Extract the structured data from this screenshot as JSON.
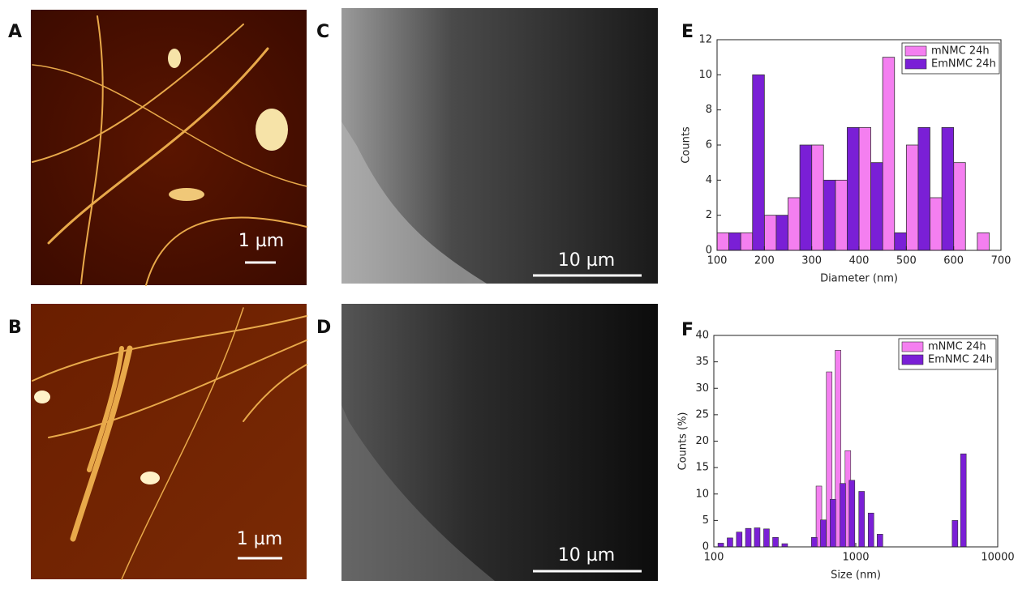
{
  "panels": [
    {
      "label": "A",
      "scale_bar": "1 µm"
    },
    {
      "label": "B",
      "scale_bar": "1 µm"
    },
    {
      "label": "C",
      "scale_bar": "10 µm"
    },
    {
      "label": "D",
      "scale_bar": "10 µm"
    }
  ],
  "chart_data": [
    {
      "type": "histogram",
      "label": "E",
      "x_label": "Diameter (nm)",
      "y_label": "Counts",
      "bins": [
        100,
        150,
        200,
        250,
        300,
        350,
        400,
        450,
        500,
        550,
        600,
        650,
        700
      ],
      "series": [
        {
          "name": "mNMC 24h",
          "color": "#f47ff0",
          "values": [
            1,
            1,
            2,
            3,
            6,
            4,
            7,
            11,
            6,
            3,
            5,
            1
          ]
        },
        {
          "name": "EmNMC 24h",
          "color": "#7a1fd6",
          "values": [
            1,
            10,
            2,
            6,
            4,
            7,
            5,
            1,
            7,
            7,
            0,
            0
          ]
        }
      ],
      "xlim": [
        100,
        700
      ],
      "xticks": [
        100,
        200,
        300,
        400,
        500,
        600,
        700
      ],
      "ylim": [
        0,
        12
      ],
      "yticks": [
        0,
        2,
        4,
        6,
        8,
        10,
        12
      ],
      "legend": "upper right"
    },
    {
      "type": "bar",
      "label": "F",
      "x_label": "Size (nm)",
      "y_label": "Counts (%)",
      "xscale": "log",
      "series": [
        {
          "name": "mNMC 24h",
          "color": "#f47ff0",
          "x": [
            550,
            650,
            750,
            880
          ],
          "values": [
            11.5,
            33.1,
            37.2,
            18.2
          ]
        },
        {
          "name": "EmNMC 24h",
          "color": "#7a1fd6",
          "x": [
            112,
            130,
            151,
            175,
            202,
            235,
            272,
            316,
            510,
            590,
            690,
            810,
            940,
            1100,
            1280,
            1480,
            5000,
            5730
          ],
          "values": [
            0.7,
            1.7,
            2.8,
            3.5,
            3.6,
            3.4,
            1.8,
            0.6,
            1.8,
            5.1,
            9.0,
            12.0,
            12.6,
            10.5,
            6.4,
            2.4,
            5.0,
            17.6
          ]
        }
      ],
      "xlim": [
        100,
        10000
      ],
      "xticks": [
        100,
        1000,
        10000
      ],
      "ylim": [
        0,
        40
      ],
      "yticks": [
        0,
        5,
        10,
        15,
        20,
        25,
        30,
        35,
        40
      ],
      "legend": "upper right"
    }
  ]
}
